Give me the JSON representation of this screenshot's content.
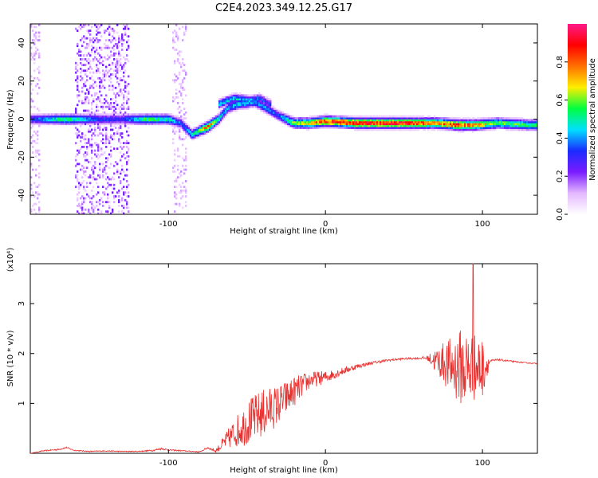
{
  "title": "C2E4.2023.349.12.25.G17",
  "colors": {
    "snr_line": "#e8302e",
    "axis": "#000000"
  },
  "chart_data": [
    {
      "type": "heatmap",
      "xlabel": "Height of straight line (km)",
      "ylabel": "Frequency (Hz)",
      "xlim": [
        -188,
        135
      ],
      "ylim": [
        -50,
        50
      ],
      "xticks": [
        -100,
        0,
        100
      ],
      "yticks": [
        -40,
        -20,
        0,
        20,
        40
      ],
      "colorbar": {
        "label": "Normalized spectral amplitude",
        "range": [
          0,
          1
        ],
        "ticks": [
          0.0,
          0.2,
          0.4,
          0.6,
          0.8
        ],
        "colormap": [
          "#ffffff",
          "#e4b8ff",
          "#7a1cff",
          "#1a2bff",
          "#00e0ff",
          "#00ff40",
          "#ffee00",
          "#ff7000",
          "#ff0000",
          "#ff1a8a"
        ]
      },
      "ridge": [
        {
          "x": -185,
          "f": 0,
          "a": 0.35
        },
        {
          "x": -165,
          "f": 0,
          "a": 0.55
        },
        {
          "x": -145,
          "f": 0,
          "a": 0.35
        },
        {
          "x": -130,
          "f": 0,
          "a": 0.3
        },
        {
          "x": -115,
          "f": 0,
          "a": 0.55
        },
        {
          "x": -100,
          "f": 0,
          "a": 0.5
        },
        {
          "x": -92,
          "f": -2,
          "a": 0.35
        },
        {
          "x": -85,
          "f": -8,
          "a": 0.45
        },
        {
          "x": -75,
          "f": -4,
          "a": 0.8
        },
        {
          "x": -68,
          "f": 0,
          "a": 0.5
        },
        {
          "x": -62,
          "f": 6,
          "a": 0.4
        },
        {
          "x": -55,
          "f": 8,
          "a": 0.45
        },
        {
          "x": -45,
          "f": 9,
          "a": 0.4
        },
        {
          "x": -38,
          "f": 6,
          "a": 0.4
        },
        {
          "x": -30,
          "f": 2,
          "a": 0.35
        },
        {
          "x": -20,
          "f": -2,
          "a": 0.6
        },
        {
          "x": -10,
          "f": -2,
          "a": 0.7
        },
        {
          "x": 0,
          "f": -1,
          "a": 0.85
        },
        {
          "x": 20,
          "f": -2,
          "a": 0.9
        },
        {
          "x": 50,
          "f": -2,
          "a": 0.9
        },
        {
          "x": 70,
          "f": -2,
          "a": 0.75
        },
        {
          "x": 85,
          "f": -3,
          "a": 0.85
        },
        {
          "x": 95,
          "f": -3,
          "a": 0.75
        },
        {
          "x": 110,
          "f": -2,
          "a": 0.6
        },
        {
          "x": 130,
          "f": -3,
          "a": 0.55
        }
      ],
      "branch": [
        {
          "x": -68,
          "f": 8,
          "a": 0.45
        },
        {
          "x": -58,
          "f": 11,
          "a": 0.45
        },
        {
          "x": -48,
          "f": 10,
          "a": 0.4
        },
        {
          "x": -42,
          "f": 11,
          "a": 0.35
        },
        {
          "x": -35,
          "f": 8,
          "a": 0.3
        }
      ],
      "noise_bands": [
        {
          "x0": -188,
          "x1": -182,
          "a": 0.25
        },
        {
          "x0": -160,
          "x1": -125,
          "a": 0.4
        },
        {
          "x0": -98,
          "x1": -88,
          "a": 0.25
        }
      ]
    },
    {
      "type": "line",
      "xlabel": "Height of straight line (km)",
      "ylabel": "SNR (10 * v/v)",
      "yscale_label": "(x10⁴)",
      "xlim": [
        -188,
        135
      ],
      "ylim": [
        0,
        3.8
      ],
      "xticks": [
        -100,
        0,
        100
      ],
      "yticks": [
        1,
        2,
        3
      ],
      "series": [
        {
          "x": [
            -188,
            -180,
            -170,
            -165,
            -160,
            -150,
            -140,
            -130,
            -120,
            -110,
            -104,
            -100,
            -90,
            -80,
            -75,
            -70,
            -60,
            -50,
            -40,
            -30,
            -20,
            -10,
            0,
            10,
            20,
            30,
            40,
            50,
            60,
            65,
            70,
            75,
            80,
            85,
            90,
            95,
            100,
            105,
            110,
            120,
            130,
            135
          ],
          "y": [
            0.0,
            0.05,
            0.08,
            0.12,
            0.06,
            0.04,
            0.05,
            0.04,
            0.04,
            0.06,
            0.1,
            0.07,
            0.05,
            0.03,
            0.12,
            0.05,
            0.4,
            0.7,
            0.9,
            1.05,
            1.3,
            1.5,
            1.55,
            1.65,
            1.75,
            1.82,
            1.87,
            1.9,
            1.91,
            1.92,
            1.9,
            1.9,
            1.85,
            1.9,
            1.85,
            1.85,
            1.82,
            1.85,
            1.88,
            1.84,
            1.81,
            1.8
          ],
          "spread": [
            0,
            0.02,
            0.03,
            0.03,
            0.02,
            0.02,
            0.02,
            0.02,
            0.02,
            0.03,
            0.05,
            0.03,
            0.02,
            0.02,
            0.05,
            0.05,
            0.5,
            0.9,
            1.0,
            0.8,
            0.6,
            0.35,
            0.25,
            0.15,
            0.1,
            0.06,
            0.05,
            0.04,
            0.04,
            0.1,
            0.5,
            0.8,
            1.2,
            1.5,
            1.7,
            1.4,
            1.2,
            0.06,
            0.04,
            0.03,
            0.02,
            0.02
          ],
          "peak": {
            "x": 94,
            "y": 3.8
          }
        }
      ]
    }
  ]
}
